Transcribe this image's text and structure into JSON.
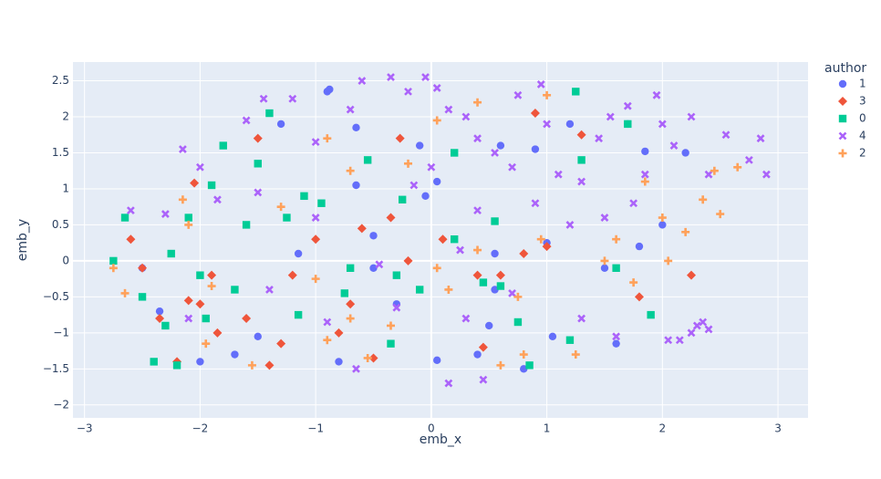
{
  "chart_data": {
    "type": "scatter",
    "x_label": "emb_x",
    "y_label": "emb_y",
    "legend_title": "author",
    "grid": true,
    "xlim": [
      -3.1,
      3.26
    ],
    "ylim": [
      -2.18,
      2.76
    ],
    "xticks": [
      {
        "value": -3,
        "label": "−3"
      },
      {
        "value": -2,
        "label": "−2"
      },
      {
        "value": -1,
        "label": "−1"
      },
      0,
      1,
      2,
      3
    ],
    "yticks": [
      {
        "value": -2,
        "label": "−2"
      },
      {
        "value": -1.5,
        "label": "−1.5"
      },
      {
        "value": -1,
        "label": "−1"
      },
      {
        "value": -0.5,
        "label": "−0.5"
      },
      0,
      0.5,
      1,
      1.5,
      2,
      2.5
    ],
    "series": [
      {
        "name": "1",
        "color": "#636efa",
        "symbol": "circle",
        "x": [
          -0.9,
          -0.88,
          -1.3,
          -0.65,
          -0.1,
          -0.05,
          0.05,
          0.6,
          0.9,
          1.2,
          1.7,
          1.85,
          2.2,
          2.0,
          1.8,
          0.55,
          0.55,
          0.5,
          0.8,
          0.05,
          -0.3,
          -0.5,
          -0.8,
          -1.5,
          -2.0,
          -2.35,
          -2.5,
          -1.7,
          1.05,
          1.6,
          -0.5,
          -1.15,
          0.4,
          -0.65,
          1.0,
          1.5
        ],
        "values": [
          2.35,
          2.38,
          1.9,
          1.85,
          1.6,
          0.9,
          1.1,
          1.6,
          1.55,
          1.9,
          1.9,
          1.52,
          1.5,
          0.5,
          0.2,
          0.1,
          -0.4,
          -0.9,
          -1.5,
          -1.38,
          -0.6,
          -0.1,
          -1.4,
          -1.05,
          -1.4,
          -0.7,
          -0.1,
          -1.3,
          -1.05,
          -1.15,
          0.35,
          0.1,
          -1.3,
          1.05,
          0.25,
          -0.1
        ]
      },
      {
        "name": "3",
        "color": "#EF553B",
        "symbol": "diamond",
        "x": [
          -2.6,
          -2.5,
          -2.35,
          -2.1,
          -2.2,
          -2.0,
          -1.9,
          -1.6,
          -1.4,
          -1.3,
          -1.0,
          -0.7,
          -0.6,
          -0.5,
          -0.35,
          -0.27,
          -0.2,
          0.1,
          0.4,
          0.6,
          0.8,
          0.9,
          1.3,
          1.0,
          1.8,
          2.25,
          -1.5,
          -2.05,
          -1.2,
          -0.8,
          0.45,
          -1.85
        ],
        "values": [
          0.3,
          -0.1,
          -0.8,
          -0.55,
          -1.4,
          -0.6,
          -0.2,
          -0.8,
          -1.45,
          -1.15,
          0.3,
          -0.6,
          0.45,
          -1.35,
          0.6,
          1.7,
          0.0,
          0.3,
          -0.2,
          -0.2,
          0.1,
          2.05,
          1.75,
          0.2,
          -0.5,
          -0.2,
          1.7,
          1.08,
          -0.2,
          -1.0,
          -1.2,
          -1.0
        ]
      },
      {
        "name": "0",
        "color": "#00cc96",
        "symbol": "square",
        "x": [
          -2.75,
          -2.65,
          -2.5,
          -2.4,
          -2.3,
          -2.2,
          -2.0,
          -2.1,
          -1.9,
          -1.8,
          -1.6,
          -1.4,
          -1.5,
          -1.25,
          -1.1,
          -0.95,
          -0.7,
          -0.55,
          -0.3,
          -0.1,
          0.2,
          0.2,
          0.45,
          0.6,
          0.75,
          0.85,
          1.25,
          1.3,
          1.6,
          1.7,
          1.9,
          1.2,
          -0.75,
          -0.35,
          -1.7,
          -2.25,
          -1.95,
          -0.25,
          0.55,
          -1.15
        ],
        "values": [
          0.0,
          0.6,
          -0.5,
          -1.4,
          -0.9,
          -1.45,
          -0.2,
          0.6,
          1.05,
          1.6,
          0.5,
          2.05,
          1.35,
          0.6,
          0.9,
          0.8,
          -0.1,
          1.4,
          -0.2,
          -0.4,
          0.3,
          1.5,
          -0.3,
          -0.35,
          -0.85,
          -1.45,
          2.35,
          1.4,
          -0.1,
          1.9,
          -0.75,
          -1.1,
          -0.45,
          -1.15,
          -0.4,
          0.1,
          -0.8,
          0.85,
          0.55,
          -0.75
        ]
      },
      {
        "name": "4",
        "color": "#ab63fa",
        "symbol": "x",
        "x": [
          -2.15,
          -2.0,
          -1.85,
          -1.6,
          -1.45,
          -1.2,
          -1.0,
          -0.7,
          -0.6,
          -0.35,
          -0.2,
          -0.05,
          0.05,
          0.15,
          0.3,
          0.4,
          0.55,
          0.7,
          0.75,
          0.95,
          1.0,
          1.1,
          1.3,
          1.45,
          1.55,
          1.7,
          1.85,
          1.95,
          2.1,
          2.25,
          2.4,
          2.55,
          2.75,
          2.9,
          2.85,
          2.3,
          2.35,
          2.4,
          2.25,
          2.15,
          1.5,
          1.2,
          0.9,
          0.4,
          0.3,
          0.45,
          0.15,
          -0.65,
          -2.6,
          -2.3,
          -1.5,
          -1.0,
          -0.45,
          -0.3,
          0.7,
          1.3,
          1.6,
          2.05,
          -1.4,
          -0.9,
          0.0,
          -0.15,
          0.25,
          2.0,
          1.75,
          -2.1
        ],
        "values": [
          1.55,
          1.3,
          0.85,
          1.95,
          2.25,
          2.25,
          1.65,
          2.1,
          2.5,
          2.55,
          2.35,
          2.55,
          2.4,
          2.1,
          2.0,
          1.7,
          1.5,
          1.3,
          2.3,
          2.45,
          1.9,
          1.2,
          1.1,
          1.7,
          2.0,
          2.15,
          1.2,
          2.3,
          1.6,
          2.0,
          1.2,
          1.75,
          1.4,
          1.2,
          1.7,
          -0.9,
          -0.85,
          -0.95,
          -1.0,
          -1.1,
          0.6,
          0.5,
          0.8,
          0.7,
          -0.8,
          -1.65,
          -1.7,
          -1.5,
          0.7,
          0.65,
          0.95,
          0.6,
          -0.05,
          -0.65,
          -0.45,
          -0.8,
          -1.05,
          -1.1,
          -0.4,
          -0.85,
          1.3,
          1.05,
          0.15,
          1.9,
          0.8,
          -0.8
        ]
      },
      {
        "name": "2",
        "color": "#FFA15A",
        "symbol": "cross",
        "x": [
          -2.75,
          -2.65,
          -2.15,
          -2.1,
          -1.9,
          -1.95,
          -1.55,
          -1.3,
          -1.0,
          -0.9,
          -0.9,
          -0.7,
          -0.7,
          -0.35,
          -0.2,
          0.05,
          0.05,
          0.15,
          0.4,
          0.4,
          0.75,
          0.8,
          0.95,
          1.0,
          1.25,
          1.5,
          1.6,
          1.75,
          1.85,
          2.0,
          2.05,
          2.2,
          2.35,
          2.45,
          2.5,
          2.65,
          -0.55,
          0.6
        ],
        "values": [
          -0.1,
          -0.45,
          0.85,
          0.5,
          -0.35,
          -1.15,
          -1.45,
          0.75,
          -0.25,
          -1.1,
          1.7,
          1.25,
          -0.8,
          -0.9,
          1.35,
          1.95,
          -0.1,
          -0.4,
          2.2,
          0.15,
          -0.5,
          -1.3,
          0.3,
          2.3,
          -1.3,
          0.0,
          0.3,
          -0.3,
          1.1,
          0.6,
          0.0,
          0.4,
          0.85,
          1.25,
          0.65,
          1.3,
          -1.35,
          -1.45
        ]
      }
    ]
  }
}
